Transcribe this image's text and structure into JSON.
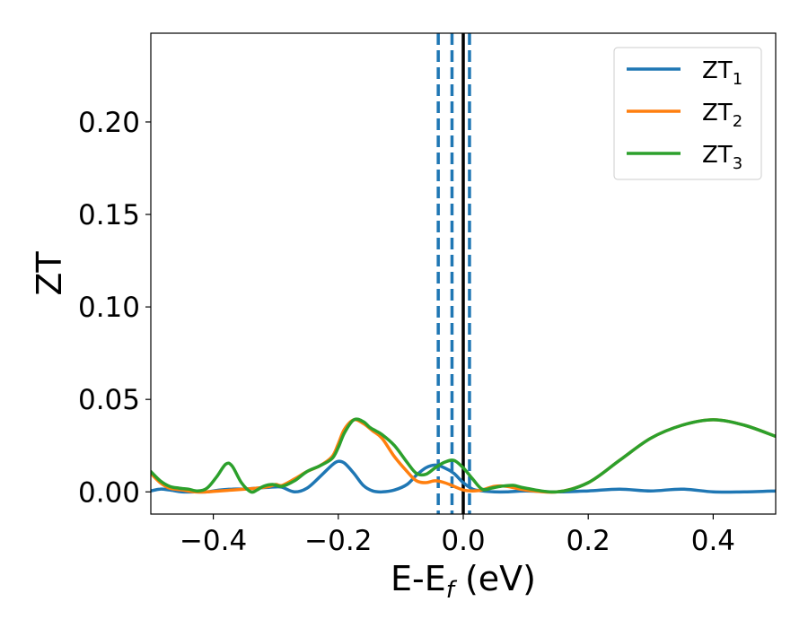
{
  "chart_data": {
    "type": "line",
    "title": "",
    "xlabel": "E-E",
    "xlabel_sub": "f",
    "xlabel_unit": " (eV)",
    "ylabel": "ZT",
    "xlim": [
      -0.5,
      0.5
    ],
    "ylim": [
      -0.012,
      0.248
    ],
    "xticks": [
      {
        "value": -0.4,
        "label": "−0.4"
      },
      {
        "value": -0.2,
        "label": "−0.2"
      },
      {
        "value": 0.0,
        "label": "0.0"
      },
      {
        "value": 0.2,
        "label": "0.2"
      },
      {
        "value": 0.4,
        "label": "0.4"
      }
    ],
    "yticks": [
      {
        "value": 0.0,
        "label": "0.00"
      },
      {
        "value": 0.05,
        "label": "0.05"
      },
      {
        "value": 0.1,
        "label": "0.10"
      },
      {
        "value": 0.15,
        "label": "0.15"
      },
      {
        "value": 0.2,
        "label": "0.20"
      }
    ],
    "grid": false,
    "legend_position": "top-right",
    "series": [
      {
        "name": "ZT",
        "name_sub": "1",
        "color": "#1f77b4",
        "x": [
          -0.5,
          -0.485,
          -0.47,
          -0.45,
          -0.43,
          -0.41,
          -0.39,
          -0.37,
          -0.35,
          -0.33,
          -0.31,
          -0.3,
          -0.29,
          -0.27,
          -0.25,
          -0.23,
          -0.21,
          -0.2,
          -0.19,
          -0.175,
          -0.16,
          -0.145,
          -0.13,
          -0.11,
          -0.09,
          -0.075,
          -0.06,
          -0.045,
          -0.03,
          -0.015,
          0.0,
          0.015,
          0.03,
          0.05,
          0.07,
          0.1,
          0.15,
          0.2,
          0.25,
          0.3,
          0.35,
          0.4,
          0.45,
          0.5
        ],
        "y": [
          0.0005,
          0.0015,
          0.001,
          0.0,
          0.0,
          0.0,
          0.001,
          0.0015,
          0.0015,
          0.002,
          0.0025,
          0.0027,
          0.0025,
          0.0,
          0.002,
          0.008,
          0.0145,
          0.0165,
          0.0155,
          0.01,
          0.0035,
          0.0005,
          0.0,
          0.001,
          0.004,
          0.009,
          0.013,
          0.0145,
          0.013,
          0.01,
          0.005,
          0.0015,
          0.0005,
          0.0,
          0.0,
          0.0005,
          0.0,
          0.0005,
          0.0015,
          0.0005,
          0.0015,
          0.0,
          0.0,
          0.0005
        ]
      },
      {
        "name": "ZT",
        "name_sub": "2",
        "color": "#ff7f0e",
        "x": [
          -0.5,
          -0.485,
          -0.47,
          -0.45,
          -0.43,
          -0.41,
          -0.39,
          -0.37,
          -0.35,
          -0.33,
          -0.31,
          -0.3,
          -0.29,
          -0.27,
          -0.25,
          -0.23,
          -0.21,
          -0.2,
          -0.19,
          -0.175,
          -0.16,
          -0.145,
          -0.13,
          -0.11,
          -0.09,
          -0.075,
          -0.06,
          -0.045,
          -0.03,
          -0.015,
          0.0,
          0.015,
          0.03,
          0.05,
          0.07,
          0.1,
          0.15,
          0.2,
          0.25,
          0.3,
          0.35,
          0.4,
          0.45,
          0.5
        ],
        "y": [
          0.01,
          0.005,
          0.002,
          0.001,
          0.0,
          0.0,
          0.0005,
          0.001,
          0.0015,
          0.002,
          0.003,
          0.004,
          0.0035,
          0.007,
          0.011,
          0.014,
          0.019,
          0.026,
          0.034,
          0.039,
          0.037,
          0.033,
          0.029,
          0.019,
          0.011,
          0.006,
          0.005,
          0.006,
          0.005,
          0.003,
          0.001,
          0.0005,
          0.001,
          0.003,
          0.003,
          0.001,
          0.0,
          0.005,
          0.017,
          0.029,
          0.036,
          0.039,
          0.036,
          0.03
        ]
      },
      {
        "name": "ZT",
        "name_sub": "3",
        "color": "#2ca02c",
        "x": [
          -0.5,
          -0.485,
          -0.47,
          -0.455,
          -0.44,
          -0.425,
          -0.41,
          -0.395,
          -0.38,
          -0.37,
          -0.355,
          -0.34,
          -0.33,
          -0.32,
          -0.305,
          -0.29,
          -0.27,
          -0.25,
          -0.23,
          -0.21,
          -0.2,
          -0.19,
          -0.175,
          -0.16,
          -0.15,
          -0.14,
          -0.13,
          -0.11,
          -0.09,
          -0.075,
          -0.06,
          -0.045,
          -0.03,
          -0.015,
          0.0,
          0.015,
          0.03,
          0.045,
          0.06,
          0.08,
          0.1,
          0.15,
          0.2,
          0.25,
          0.3,
          0.35,
          0.4,
          0.45,
          0.5
        ],
        "y": [
          0.011,
          0.006,
          0.003,
          0.002,
          0.0015,
          0.0005,
          0.002,
          0.008,
          0.015,
          0.014,
          0.005,
          0.0,
          0.001,
          0.003,
          0.004,
          0.003,
          0.006,
          0.011,
          0.014,
          0.018,
          0.024,
          0.032,
          0.039,
          0.038,
          0.035,
          0.033,
          0.031,
          0.025,
          0.016,
          0.01,
          0.0095,
          0.013,
          0.016,
          0.017,
          0.013,
          0.007,
          0.0015,
          0.002,
          0.003,
          0.0035,
          0.002,
          0.0,
          0.005,
          0.017,
          0.029,
          0.036,
          0.039,
          0.036,
          0.03
        ]
      }
    ],
    "vertical_lines": [
      {
        "x": -0.04,
        "style": "dashed",
        "color": "#1f77b4"
      },
      {
        "x": -0.018,
        "style": "dashed",
        "color": "#1f77b4"
      },
      {
        "x": 0.01,
        "style": "dashed",
        "color": "#1f77b4"
      },
      {
        "x": 0.0,
        "style": "solid",
        "color": "#000000"
      }
    ]
  }
}
